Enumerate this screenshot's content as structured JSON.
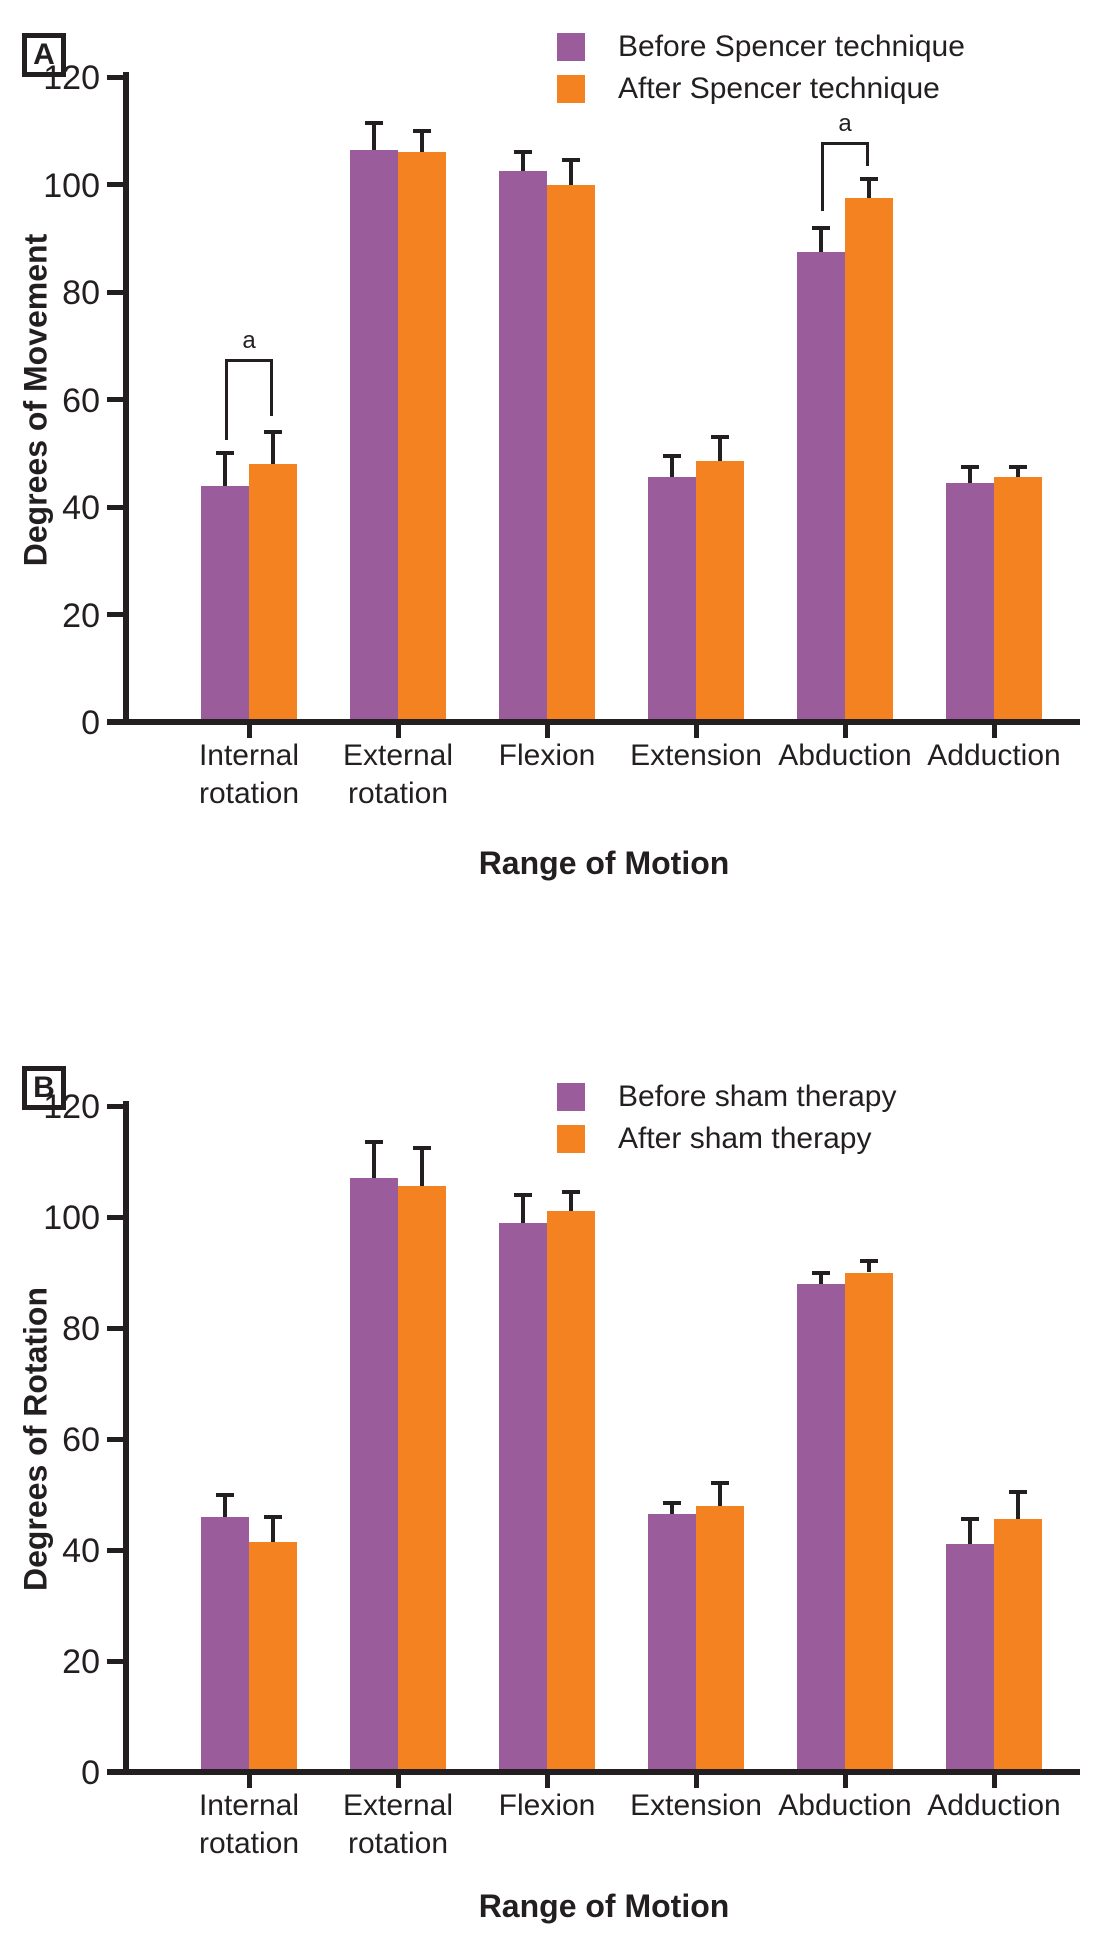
{
  "figure": {
    "background": "#ffffff",
    "text_color": "#231f20",
    "panel_count": 2
  },
  "colors": {
    "before_series": "#9b5c9b",
    "after_series": "#f58221",
    "axis": "#231f20"
  },
  "chart_data": [
    {
      "type": "bar",
      "panel_label": "A",
      "ylabel": "Degrees of Movement",
      "xlabel": "Range of Motion",
      "ylim": [
        0,
        120
      ],
      "yticks": [
        0,
        20,
        40,
        60,
        80,
        100,
        120
      ],
      "grid": false,
      "legend_position": "top-right",
      "error_bars": "upper",
      "categories": [
        "Internal rotation",
        "External rotation",
        "Flexion",
        "Extension",
        "Abduction",
        "Adduction"
      ],
      "series": [
        {
          "name": "Before Spencer technique",
          "color": "#9b5c9b",
          "values": [
            44,
            106.5,
            102.5,
            45.5,
            87.5,
            44.5
          ],
          "errors": [
            6,
            5,
            3.5,
            4,
            4.5,
            3
          ]
        },
        {
          "name": "After Spencer technique",
          "color": "#f58221",
          "values": [
            48,
            106,
            100,
            48.5,
            97.5,
            45.5
          ],
          "errors": [
            6,
            4,
            4.5,
            4.5,
            3.5,
            2
          ]
        }
      ],
      "annotations": [
        {
          "label": "a",
          "category": "Internal rotation",
          "category_index": 0,
          "top_value": 67.5,
          "left_arm_bottom": 52.5,
          "right_arm_bottom": 57
        },
        {
          "label": "a",
          "category": "Abduction",
          "category_index": 4,
          "top_value": 108,
          "left_arm_bottom": 95,
          "right_arm_bottom": 103.5
        }
      ]
    },
    {
      "type": "bar",
      "panel_label": "B",
      "ylabel": "Degrees of Rotation",
      "xlabel": "Range of Motion",
      "ylim": [
        0,
        120
      ],
      "yticks": [
        0,
        20,
        40,
        60,
        80,
        100,
        120
      ],
      "grid": false,
      "legend_position": "top-right",
      "error_bars": "upper",
      "categories": [
        "Internal rotation",
        "External rotation",
        "Flexion",
        "Extension",
        "Abduction",
        "Adduction"
      ],
      "series": [
        {
          "name": "Before sham therapy",
          "color": "#9b5c9b",
          "values": [
            46,
            107,
            99,
            46.5,
            88,
            41
          ],
          "errors": [
            4,
            6.5,
            5,
            2,
            2,
            4.5
          ]
        },
        {
          "name": "After sham therapy",
          "color": "#f58221",
          "values": [
            41.5,
            105.5,
            101,
            48,
            90,
            45.5
          ],
          "errors": [
            4.5,
            7,
            3.5,
            4,
            2,
            5
          ]
        }
      ],
      "annotations": []
    }
  ]
}
